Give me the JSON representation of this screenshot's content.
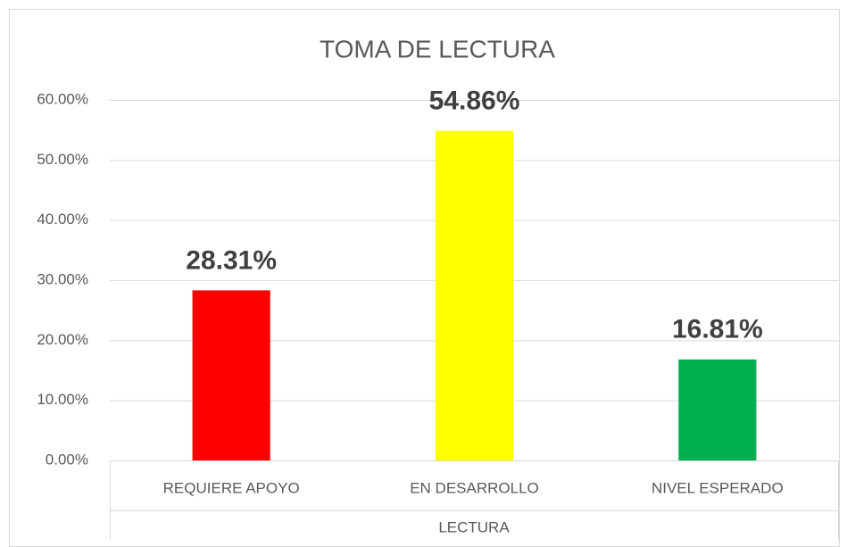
{
  "chart_data": {
    "type": "bar",
    "title": "TOMA DE LECTURA",
    "x_label": "LECTURA",
    "categories": [
      "REQUIERE APOYO",
      "EN DESARROLLO",
      "NIVEL ESPERADO"
    ],
    "values": [
      28.31,
      54.86,
      16.81
    ],
    "value_labels": [
      "28.31%",
      "54.86%",
      "16.81%"
    ],
    "colors": [
      "#ff0000",
      "#ffff00",
      "#00b050"
    ],
    "ylim": [
      0,
      60
    ],
    "yticks": [
      {
        "value": 0,
        "label": "0.00%"
      },
      {
        "value": 10,
        "label": "10.00%"
      },
      {
        "value": 20,
        "label": "20.00%"
      },
      {
        "value": 30,
        "label": "30.00%"
      },
      {
        "value": 40,
        "label": "40.00%"
      },
      {
        "value": 50,
        "label": "50.00%"
      },
      {
        "value": 60,
        "label": "60.00%"
      }
    ],
    "grid": true
  }
}
